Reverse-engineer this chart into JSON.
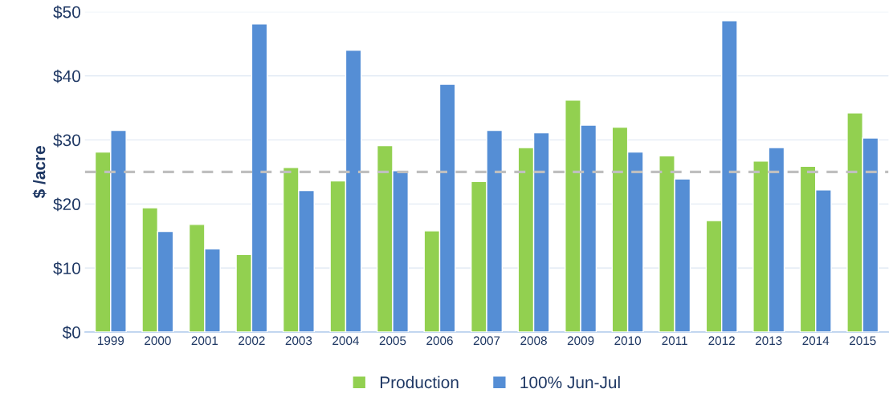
{
  "chart_data": {
    "type": "bar",
    "ylabel": "$ /acre",
    "categories": [
      "1999",
      "2000",
      "2001",
      "2002",
      "2003",
      "2004",
      "2005",
      "2006",
      "2007",
      "2008",
      "2009",
      "2010",
      "2011",
      "2012",
      "2013",
      "2014",
      "2015"
    ],
    "series": [
      {
        "name": "Production",
        "color": "#92d050",
        "values": [
          28.1,
          19.4,
          16.8,
          12.1,
          25.7,
          23.6,
          29.1,
          15.8,
          23.5,
          28.8,
          36.2,
          32.0,
          27.5,
          17.4,
          26.7,
          25.9,
          34.2
        ]
      },
      {
        "name": "100% Jun-Jul",
        "color": "#558ed5",
        "values": [
          31.5,
          15.7,
          13.0,
          48.1,
          22.1,
          44.0,
          25.2,
          38.7,
          31.5,
          31.1,
          32.3,
          28.1,
          23.9,
          48.6,
          28.8,
          22.2,
          30.3
        ]
      }
    ],
    "ylim": [
      0,
      50
    ],
    "yticks": [
      {
        "value": 0,
        "label": "$0"
      },
      {
        "value": 10,
        "label": "$10"
      },
      {
        "value": 20,
        "label": "$20"
      },
      {
        "value": 30,
        "label": "$30"
      },
      {
        "value": 40,
        "label": "$40"
      },
      {
        "value": 50,
        "label": "$50"
      }
    ],
    "ref_lines": [
      {
        "axis": "y",
        "value": 25,
        "color": "#bfbfbf",
        "line_style": "dashed"
      }
    ],
    "grid": "y",
    "legend": "bottom"
  }
}
